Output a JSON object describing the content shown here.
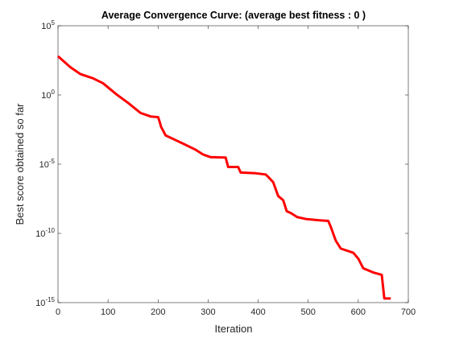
{
  "chart_data": {
    "type": "line",
    "title": "Average Convergence Curve: (average best fitness : 0 )",
    "xlabel": "Iteration",
    "ylabel": "Best score obtained so far",
    "log_y": true,
    "grid": false,
    "xlim": [
      0,
      700
    ],
    "xticks": [
      0,
      100,
      200,
      300,
      400,
      500,
      600,
      700
    ],
    "ylim": [
      1e-15,
      100000
    ],
    "yticks": [
      {
        "value": 1e-15,
        "label": "10^-15"
      },
      {
        "value": 1e-10,
        "label": "10^-10"
      },
      {
        "value": 1e-05,
        "label": "10^-5"
      },
      {
        "value": 1,
        "label": "10^0"
      },
      {
        "value": 100000,
        "label": "10^5"
      }
    ],
    "series": [
      {
        "color": "#ff0000",
        "x": [
          0,
          10,
          25,
          45,
          70,
          90,
          105,
          117,
          140,
          165,
          185,
          200,
          203,
          206,
          215,
          235,
          255,
          275,
          290,
          305,
          335,
          340,
          360,
          365,
          395,
          415,
          420,
          430,
          440,
          450,
          457,
          465,
          478,
          495,
          520,
          540,
          545,
          555,
          565,
          590,
          600,
          610,
          630,
          647,
          652,
          665
        ],
        "values": [
          630,
          300,
          100,
          32,
          16,
          7,
          2.5,
          1.1,
          0.27,
          0.05,
          0.028,
          0.025,
          0.012,
          0.005,
          0.0012,
          0.00055,
          0.00025,
          0.00011,
          5e-05,
          3.2e-05,
          3e-05,
          6.3e-06,
          6.3e-06,
          2.5e-06,
          2.2e-06,
          1.8e-06,
          1.2e-06,
          5e-07,
          5e-08,
          2.5e-08,
          4e-09,
          3e-09,
          1.5e-09,
          1.1e-09,
          9e-10,
          8e-10,
          3e-10,
          3e-11,
          8e-12,
          4e-12,
          1.5e-12,
          3e-13,
          1.5e-13,
          1e-13,
          2e-15,
          2e-15
        ]
      }
    ]
  }
}
